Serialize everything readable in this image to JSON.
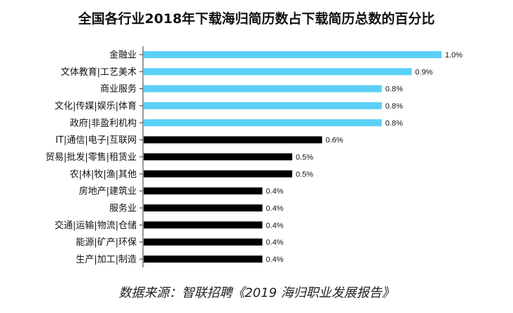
{
  "chart_data": {
    "type": "bar",
    "orientation": "horizontal",
    "title": "全国各行业2018年下载海归简历数占下载简历总数的百分比",
    "categories": [
      "金融业",
      "文体教育|工艺美术",
      "商业服务",
      "文化|传媒|娱乐|体育",
      "政府|非盈利机构",
      "IT|通信|电子|互联网",
      "贸易|批发|零售|租赁业",
      "农|林|牧|渔|其他",
      "房地产|建筑业",
      "服务业",
      "交通|运输|物流|仓储",
      "能源|矿产|环保",
      "生产|加工|制造"
    ],
    "values": [
      1.0,
      0.9,
      0.8,
      0.8,
      0.8,
      0.6,
      0.5,
      0.5,
      0.4,
      0.4,
      0.4,
      0.4,
      0.4
    ],
    "value_labels": [
      "1.0%",
      "0.9%",
      "0.8%",
      "0.8%",
      "0.8%",
      "0.6%",
      "0.5%",
      "0.5%",
      "0.4%",
      "0.4%",
      "0.4%",
      "0.4%",
      "0.4%"
    ],
    "highlight_count": 5,
    "colors": {
      "highlight": "#5bd0f7",
      "default": "#000000"
    },
    "xlim": [
      0,
      1.0
    ],
    "grid": false,
    "legend": "none"
  },
  "source": "数据来源：智联招聘《2019 海归职业发展报告》"
}
